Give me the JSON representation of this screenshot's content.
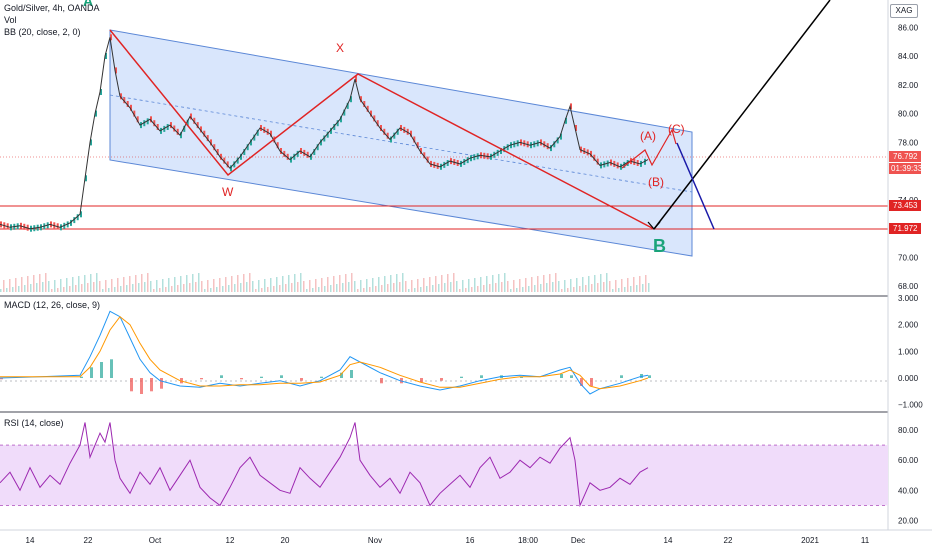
{
  "header": {
    "title": "Gold/Silver, 4h, OANDA",
    "vol_label": "Vol",
    "bb_label": "BB (20, close, 2, 0)",
    "symbol_badge": "XAG",
    "macd_label": "MACD (12, 26, close, 9)",
    "rsi_label": "RSI (14, close)"
  },
  "price_tags": {
    "last": "76.792",
    "countdown": "01:39:33",
    "level1": "73.453",
    "level2": "71.972"
  },
  "annotations": {
    "w": "W",
    "x": "X",
    "a_upper": "A",
    "b_big": "B",
    "wave_a": "(A)",
    "wave_b": "(B)",
    "wave_c": "(C)"
  },
  "colors": {
    "up": "#26a69a",
    "down": "#ef5350",
    "channel_fill": "#cfe0fb",
    "channel_line": "#5b87d6",
    "red_line": "#e02424",
    "blue_line": "#1a1aa8",
    "black_line": "#000000",
    "macd_line": "#2196f3",
    "signal_line": "#ff9800",
    "rsi_line": "#9c27b0",
    "rsi_band": "#f0dcfa"
  },
  "chart_data": [
    {
      "type": "line",
      "title": "Gold/Silver, 4h, OANDA",
      "y_axis_ticks": [
        68.0,
        70.0,
        72.0,
        74.0,
        76.0,
        78.0,
        80.0,
        82.0,
        84.0,
        86.0
      ],
      "ylim": [
        67.6,
        87.2
      ],
      "x_axis_labels": [
        "14",
        "22",
        "Oct",
        "12",
        "20",
        "Nov",
        "16",
        "18:00",
        "Dec",
        "14",
        "22",
        "2021",
        "11"
      ],
      "series": [
        {
          "name": "",
          "x": [
            0,
            10,
            20,
            30,
            40,
            50,
            60,
            70,
            80,
            85,
            90,
            95,
            100,
            105,
            110,
            115,
            120,
            130,
            140,
            150,
            160,
            170,
            180,
            190,
            200,
            210,
            220,
            230,
            240,
            250,
            260,
            270,
            280,
            290,
            300,
            310,
            320,
            330,
            340,
            350,
            355,
            360,
            370,
            380,
            390,
            400,
            410,
            420,
            430,
            440,
            450,
            460,
            470,
            480,
            490,
            500,
            510,
            520,
            530,
            540,
            550,
            560,
            565,
            570,
            575,
            580,
            590,
            600,
            610,
            620,
            630,
            640,
            648
          ],
          "values": [
            72.3,
            72.1,
            72.2,
            72.0,
            72.1,
            72.3,
            72.1,
            72.4,
            73.0,
            75.5,
            78.0,
            80.0,
            81.5,
            84.0,
            85.3,
            83.0,
            81.2,
            80.4,
            79.2,
            79.6,
            78.8,
            79.2,
            78.5,
            79.8,
            78.9,
            78.0,
            77.0,
            76.2,
            77.0,
            78.0,
            79.0,
            78.6,
            77.4,
            76.8,
            77.4,
            77.0,
            78.0,
            78.8,
            79.6,
            81.0,
            82.4,
            81.0,
            80.0,
            79.0,
            78.2,
            79.0,
            78.6,
            77.4,
            76.5,
            76.3,
            76.7,
            76.5,
            76.9,
            77.1,
            77.0,
            77.4,
            77.8,
            78.0,
            77.8,
            78.0,
            77.6,
            78.4,
            79.5,
            80.5,
            79.0,
            77.5,
            77.2,
            76.4,
            76.6,
            76.3,
            76.7,
            76.5,
            76.8
          ]
        }
      ]
    },
    {
      "type": "line",
      "title": "MACD (12, 26, close, 9)",
      "y_axis_ticks": [
        -1.0,
        0.0,
        1.0,
        2.0,
        3.0
      ],
      "ylim": [
        -1.2,
        3.0
      ],
      "series": [
        {
          "name": "",
          "x": [
            0,
            40,
            80,
            90,
            100,
            110,
            120,
            130,
            140,
            150,
            160,
            180,
            200,
            220,
            240,
            260,
            280,
            300,
            320,
            340,
            350,
            360,
            380,
            400,
            420,
            440,
            460,
            480,
            500,
            520,
            540,
            560,
            570,
            580,
            590,
            600,
            620,
            640,
            648
          ],
          "values": [
            0.0,
            0.05,
            0.1,
            0.8,
            1.6,
            2.5,
            2.3,
            1.5,
            0.7,
            0.2,
            -0.1,
            -0.3,
            -0.35,
            -0.2,
            -0.3,
            -0.2,
            -0.1,
            -0.3,
            -0.1,
            0.3,
            0.8,
            0.6,
            0.2,
            -0.1,
            -0.3,
            -0.45,
            -0.3,
            -0.1,
            0.05,
            0.1,
            0.05,
            0.3,
            0.4,
            -0.2,
            -0.6,
            -0.4,
            -0.2,
            0.05,
            0.1
          ]
        },
        {
          "name": "",
          "x": [
            0,
            40,
            80,
            90,
            100,
            110,
            120,
            130,
            140,
            150,
            160,
            180,
            200,
            220,
            240,
            260,
            280,
            300,
            320,
            340,
            350,
            360,
            380,
            400,
            420,
            440,
            460,
            480,
            500,
            520,
            540,
            560,
            570,
            580,
            590,
            600,
            620,
            640,
            648
          ],
          "values": [
            0.05,
            0.05,
            0.05,
            0.4,
            1.0,
            1.8,
            2.3,
            2.0,
            1.3,
            0.7,
            0.3,
            -0.1,
            -0.3,
            -0.3,
            -0.25,
            -0.25,
            -0.2,
            -0.2,
            -0.15,
            0.1,
            0.5,
            0.6,
            0.4,
            0.1,
            -0.15,
            -0.35,
            -0.35,
            -0.2,
            -0.05,
            0.05,
            0.05,
            0.15,
            0.3,
            0.1,
            -0.3,
            -0.4,
            -0.3,
            -0.1,
            0.0
          ]
        }
      ]
    },
    {
      "type": "line",
      "title": "RSI (14, close)",
      "y_axis_ticks": [
        20.0,
        40.0,
        60.0,
        80.0
      ],
      "ylim": [
        15.0,
        88.0
      ],
      "series": [
        {
          "name": "",
          "x": [
            0,
            10,
            20,
            30,
            40,
            50,
            60,
            70,
            80,
            85,
            90,
            100,
            105,
            110,
            115,
            120,
            130,
            140,
            150,
            160,
            170,
            180,
            190,
            200,
            210,
            220,
            230,
            240,
            250,
            260,
            270,
            280,
            290,
            300,
            310,
            320,
            330,
            340,
            350,
            355,
            360,
            370,
            380,
            390,
            400,
            410,
            420,
            430,
            440,
            450,
            460,
            470,
            480,
            490,
            500,
            510,
            520,
            530,
            540,
            550,
            560,
            570,
            575,
            580,
            590,
            600,
            610,
            620,
            630,
            640,
            648
          ],
          "values": [
            45,
            52,
            40,
            55,
            42,
            50,
            44,
            58,
            70,
            85,
            62,
            78,
            72,
            85,
            60,
            48,
            38,
            52,
            44,
            55,
            40,
            50,
            60,
            42,
            35,
            30,
            42,
            55,
            62,
            50,
            45,
            40,
            38,
            55,
            48,
            42,
            52,
            62,
            75,
            85,
            60,
            50,
            42,
            48,
            38,
            52,
            45,
            30,
            38,
            44,
            50,
            42,
            55,
            62,
            48,
            52,
            60,
            55,
            62,
            58,
            68,
            75,
            60,
            30,
            45,
            40,
            42,
            48,
            44,
            52,
            55
          ]
        }
      ]
    }
  ]
}
